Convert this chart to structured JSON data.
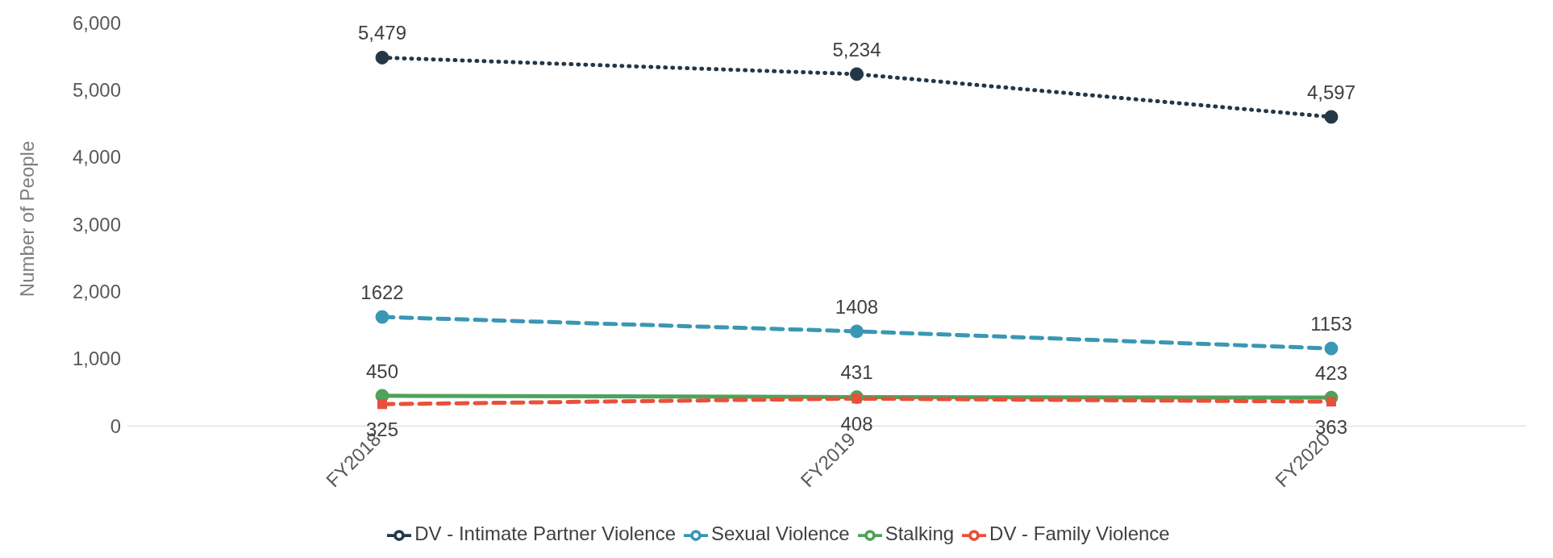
{
  "chart_data": {
    "type": "line",
    "ylabel": "Number of People",
    "categories": [
      "FY2018",
      "FY2019",
      "FY2020"
    ],
    "series": [
      {
        "name": "DV - Intimate Partner Violence",
        "color": "#243746",
        "values": [
          5479,
          5234,
          4597
        ],
        "value_labels": [
          "5,479",
          "5,234",
          "4,597"
        ],
        "line_style": "dotted",
        "marker": "circle"
      },
      {
        "name": "Sexual Violence",
        "color": "#3a97b3",
        "values": [
          1622,
          1408,
          1153
        ],
        "value_labels": [
          "1622",
          "1408",
          "1153"
        ],
        "line_style": "dashed",
        "marker": "circle"
      },
      {
        "name": "Stalking",
        "color": "#4ea25a",
        "values": [
          450,
          431,
          423
        ],
        "value_labels": [
          "450",
          "431",
          "423"
        ],
        "line_style": "solid",
        "marker": "circle"
      },
      {
        "name": "DV - Family Violence",
        "color": "#e8503a",
        "values": [
          325,
          408,
          363
        ],
        "value_labels": [
          "325",
          "408",
          "363"
        ],
        "line_style": "dashed",
        "marker": "square"
      }
    ],
    "ylim": [
      0,
      6000
    ],
    "yticks": [
      0,
      {
        "value": 1000,
        "label": "1,000"
      },
      {
        "value": 2000,
        "label": "2,000"
      },
      {
        "value": 3000,
        "label": "3,000"
      },
      {
        "value": 4000,
        "label": "4,000"
      },
      {
        "value": 5000,
        "label": "5,000"
      },
      {
        "value": 6000,
        "label": "6,000"
      }
    ],
    "grid": false,
    "legend": "bottom"
  }
}
